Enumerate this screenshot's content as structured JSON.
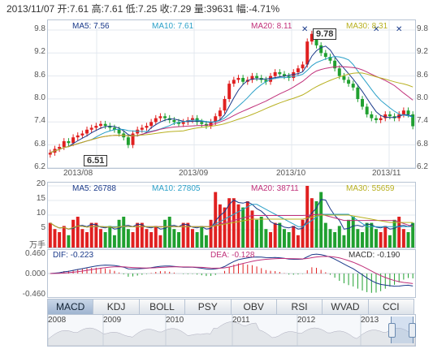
{
  "header": {
    "date": "2013/11/07",
    "open_label": "开:",
    "open": "7.61",
    "high_label": "高:",
    "high": "7.61",
    "low_label": "低:",
    "low": "7.25",
    "close_label": "收:",
    "close": "7.29",
    "volume_label": "量:",
    "volume": "39631",
    "change_label": "幅:",
    "change": "-4.71%"
  },
  "main": {
    "ma_legend": [
      {
        "text": "MA5: 7.56",
        "color": "#1a3a8a"
      },
      {
        "text": "MA10: 7.61",
        "color": "#2aa0c8"
      },
      {
        "text": "MA20: 8.11",
        "color": "#c0307a"
      },
      {
        "text": "MA30: 8.31",
        "color": "#b8b020"
      }
    ],
    "y_ticks": [
      "9.8",
      "9.2",
      "8.6",
      "8.0",
      "7.4",
      "6.8",
      "6.2"
    ],
    "x_ticks": [
      "2013/08",
      "2013/09",
      "2013/10",
      "2013/11"
    ],
    "max_marker": "9.78",
    "min_marker": "6.51"
  },
  "volume": {
    "ma_legend": [
      {
        "text": "MA5: 26788",
        "color": "#1a3a8a"
      },
      {
        "text": "MA10: 27805",
        "color": "#2aa0c8"
      },
      {
        "text": "MA20: 38711",
        "color": "#c0307a"
      },
      {
        "text": "MA30: 55659",
        "color": "#b8b020"
      }
    ],
    "y_ticks": [
      "20",
      "15",
      "10",
      "5",
      "万手"
    ]
  },
  "macd": {
    "dif": "DIF: -0.223",
    "dea": "DEA: -0.128",
    "macd": "MACD: -0.190",
    "y_ticks": [
      "0.460",
      "0.000",
      "-0.460"
    ]
  },
  "tabs": [
    "MACD",
    "KDJ",
    "BOLL",
    "PSY",
    "OBV",
    "RSI",
    "WVAD",
    "CCI"
  ],
  "active_tab": "MACD",
  "overview": {
    "years": [
      "2008",
      "2009",
      "2010",
      "2011",
      "2012",
      "2013"
    ]
  },
  "colors": {
    "up": "#e02020",
    "down": "#20a030",
    "panel_border": "#b8c4d4"
  }
}
